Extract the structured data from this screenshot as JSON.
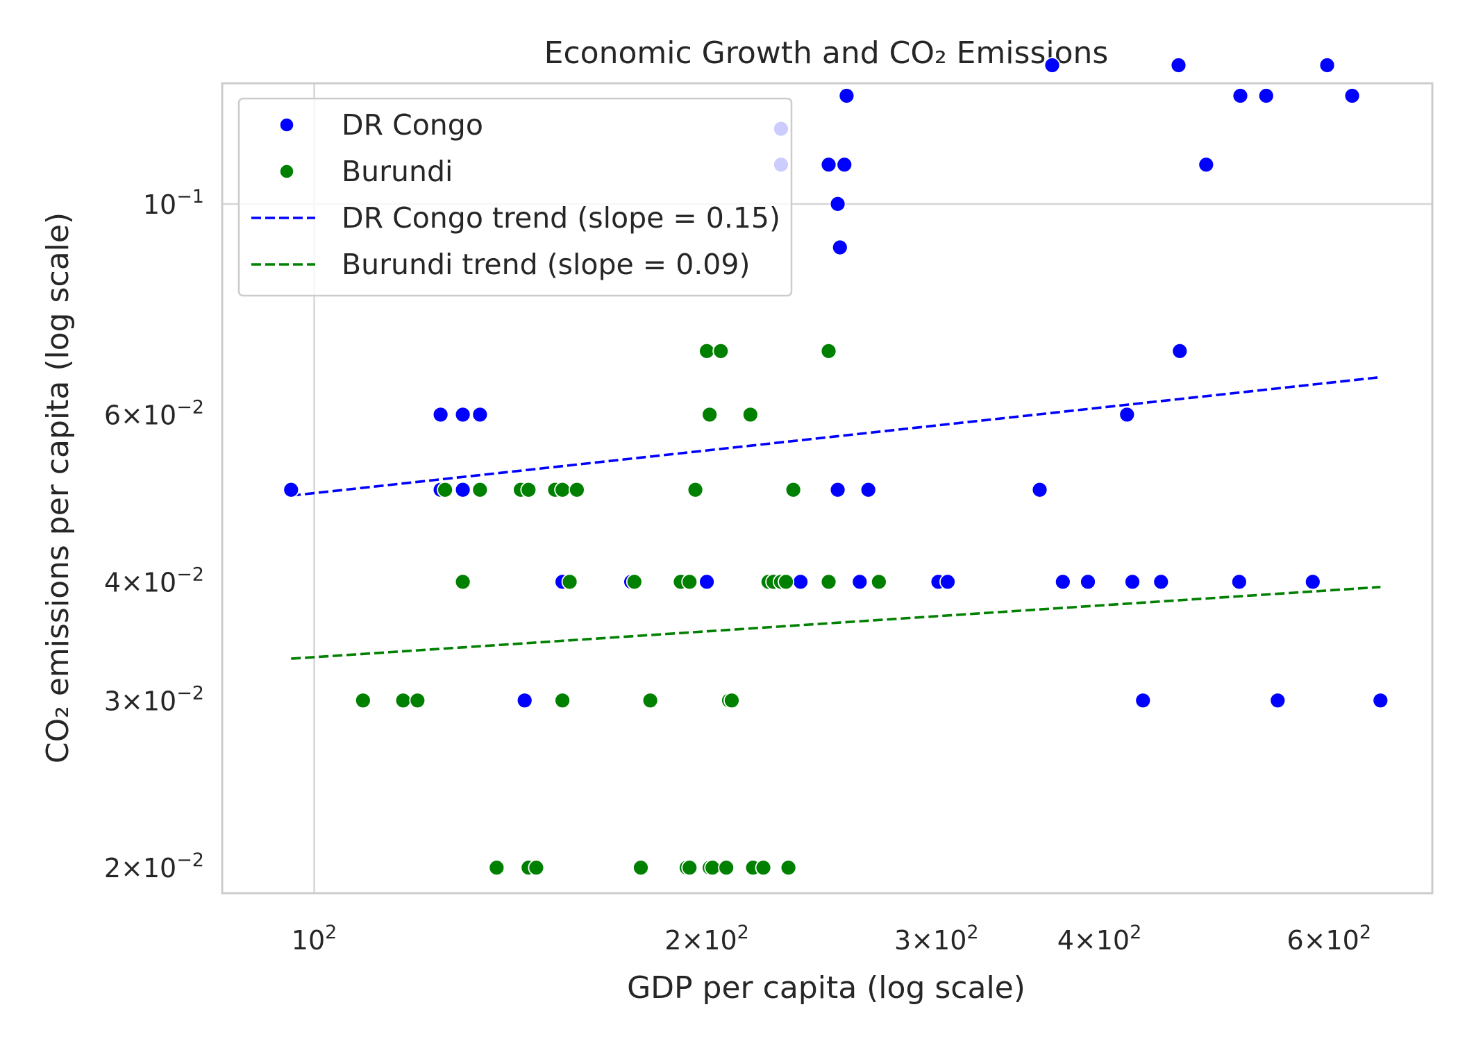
{
  "chart_data": {
    "type": "scatter",
    "title": "Economic Growth and CO₂ Emissions",
    "xlabel": "GDP per capita (log scale)",
    "ylabel": "CO₂ emissions per capita (log scale)",
    "xscale": "log",
    "yscale": "log",
    "xlim": [
      85,
      720
    ],
    "ylim": [
      0.0188,
      0.134
    ],
    "grid": true,
    "legend_position": "upper-left",
    "x_ticks": [
      {
        "value": 100,
        "label": "10^2"
      },
      {
        "value": 200,
        "label": "2×10^2"
      },
      {
        "value": 300,
        "label": "3×10^2"
      },
      {
        "value": 400,
        "label": "4×10^2"
      },
      {
        "value": 600,
        "label": "6×10^2"
      }
    ],
    "y_ticks": [
      {
        "value": 0.1,
        "label": "10^-1"
      },
      {
        "value": 0.06,
        "label": "6×10^-2"
      },
      {
        "value": 0.04,
        "label": "4×10^-2"
      },
      {
        "value": 0.03,
        "label": "3×10^-2"
      },
      {
        "value": 0.02,
        "label": "2×10^-2"
      }
    ],
    "series": [
      {
        "name": "DR Congo",
        "kind": "scatter",
        "color": "#0000ff",
        "points": [
          [
            96,
            0.05
          ],
          [
            125,
            0.06
          ],
          [
            130,
            0.06
          ],
          [
            134,
            0.06
          ],
          [
            125,
            0.05
          ],
          [
            130,
            0.05
          ],
          [
            145,
            0.03
          ],
          [
            155,
            0.04
          ],
          [
            175,
            0.04
          ],
          [
            200,
            0.04
          ],
          [
            228,
            0.12
          ],
          [
            228,
            0.11
          ],
          [
            236,
            0.04
          ],
          [
            248,
            0.11
          ],
          [
            255,
            0.11
          ],
          [
            256,
            0.13
          ],
          [
            252,
            0.1
          ],
          [
            253,
            0.09
          ],
          [
            252,
            0.05
          ],
          [
            262,
            0.04
          ],
          [
            266,
            0.05
          ],
          [
            301,
            0.04
          ],
          [
            306,
            0.04
          ],
          [
            360,
            0.05
          ],
          [
            368,
            0.14
          ],
          [
            375,
            0.04
          ],
          [
            392,
            0.04
          ],
          [
            420,
            0.06
          ],
          [
            424,
            0.04
          ],
          [
            432,
            0.03
          ],
          [
            460,
            0.14
          ],
          [
            461,
            0.07
          ],
          [
            446,
            0.04
          ],
          [
            483,
            0.11
          ],
          [
            512,
            0.04
          ],
          [
            513,
            0.13
          ],
          [
            537,
            0.13
          ],
          [
            548,
            0.03
          ],
          [
            583,
            0.04
          ],
          [
            598,
            0.14
          ],
          [
            625,
            0.13
          ],
          [
            657,
            0.03
          ]
        ]
      },
      {
        "name": "Burundi",
        "kind": "scatter",
        "color": "#008000",
        "points": [
          [
            109,
            0.03
          ],
          [
            117,
            0.03
          ],
          [
            120,
            0.03
          ],
          [
            126,
            0.05
          ],
          [
            130,
            0.04
          ],
          [
            134,
            0.05
          ],
          [
            138,
            0.02
          ],
          [
            144,
            0.05
          ],
          [
            146,
            0.05
          ],
          [
            146,
            0.02
          ],
          [
            148,
            0.02
          ],
          [
            153,
            0.05
          ],
          [
            155,
            0.05
          ],
          [
            155,
            0.03
          ],
          [
            157,
            0.04
          ],
          [
            159,
            0.05
          ],
          [
            176,
            0.04
          ],
          [
            178,
            0.02
          ],
          [
            181,
            0.03
          ],
          [
            191,
            0.04
          ],
          [
            193,
            0.02
          ],
          [
            194,
            0.02
          ],
          [
            194,
            0.04
          ],
          [
            196,
            0.05
          ],
          [
            200,
            0.07
          ],
          [
            201,
            0.06
          ],
          [
            201,
            0.02
          ],
          [
            202,
            0.02
          ],
          [
            205,
            0.07
          ],
          [
            207,
            0.02
          ],
          [
            208,
            0.03
          ],
          [
            209,
            0.03
          ],
          [
            216,
            0.06
          ],
          [
            217,
            0.02
          ],
          [
            221,
            0.02
          ],
          [
            223,
            0.04
          ],
          [
            225,
            0.04
          ],
          [
            228,
            0.04
          ],
          [
            230,
            0.04
          ],
          [
            231,
            0.02
          ],
          [
            233,
            0.05
          ],
          [
            248,
            0.07
          ],
          [
            248,
            0.04
          ],
          [
            271,
            0.04
          ]
        ]
      },
      {
        "name": "DR Congo trend (slope = 0.15)",
        "kind": "trend",
        "color": "#0000ff",
        "slope": 0.15,
        "line": [
          [
            96,
            0.0493
          ],
          [
            657,
            0.0657
          ]
        ]
      },
      {
        "name": "Burundi trend (slope = 0.09)",
        "kind": "trend",
        "color": "#008000",
        "slope": 0.09,
        "line": [
          [
            96,
            0.0332
          ],
          [
            657,
            0.0395
          ]
        ]
      }
    ]
  }
}
